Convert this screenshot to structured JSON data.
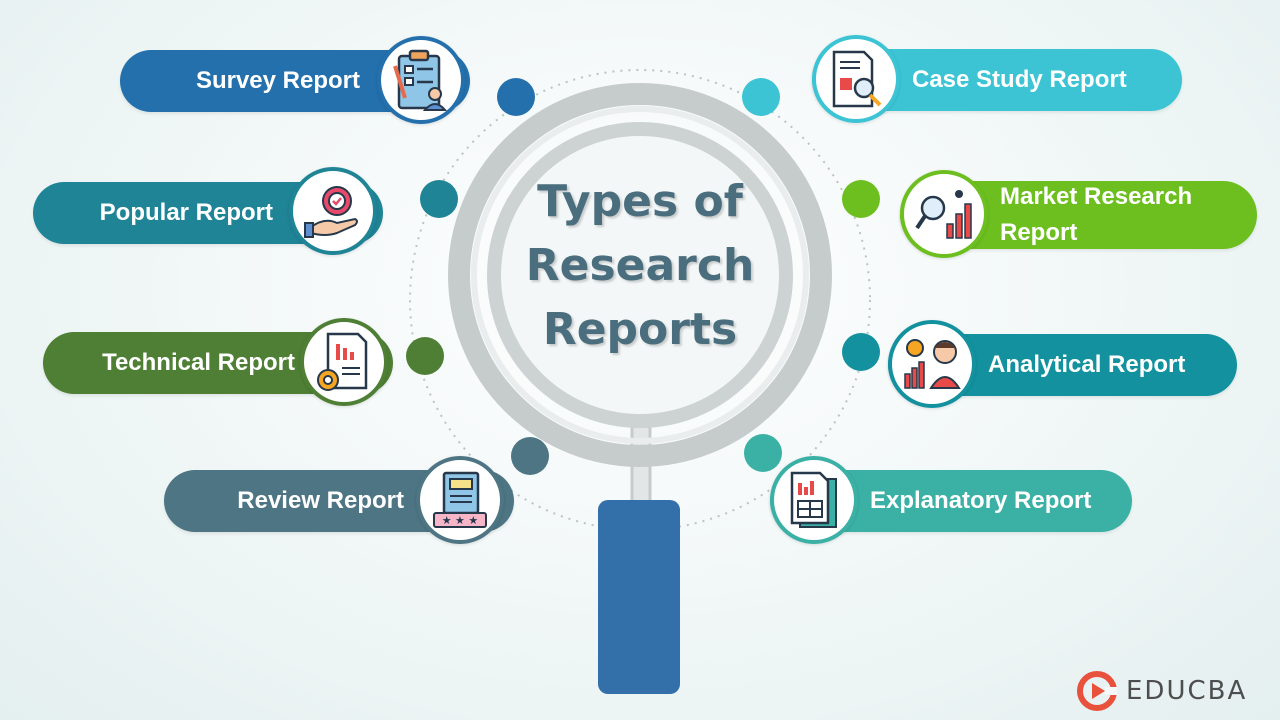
{
  "title": {
    "line1": "Types of",
    "line2": "Research",
    "line3": "Reports"
  },
  "items": [
    {
      "label": "Survey Report",
      "color": "#2470ad",
      "icon": "survey-clipboard-icon"
    },
    {
      "label": "Popular Report",
      "color": "#1f8496",
      "icon": "award-hand-icon"
    },
    {
      "label": "Technical Report",
      "color": "#4e7f34",
      "icon": "technical-document-gear-icon"
    },
    {
      "label": "Review Report",
      "color": "#4d7583",
      "icon": "book-review-stars-icon"
    },
    {
      "label": "Case Study Report",
      "color": "#3cc4d5",
      "icon": "case-study-magnifier-icon"
    },
    {
      "label": "Market Research\nReport",
      "color": "#6cbf1f",
      "icon": "market-research-chart-icon"
    },
    {
      "label": "Analytical Report",
      "color": "#14919f",
      "icon": "analytical-person-chart-icon"
    },
    {
      "label": "Explanatory Report",
      "color": "#3bb1a5",
      "icon": "explanatory-report-icon"
    }
  ],
  "handle_color": "#336fa9",
  "brand": {
    "name": "EDUCBA",
    "color": "#e8513b"
  }
}
